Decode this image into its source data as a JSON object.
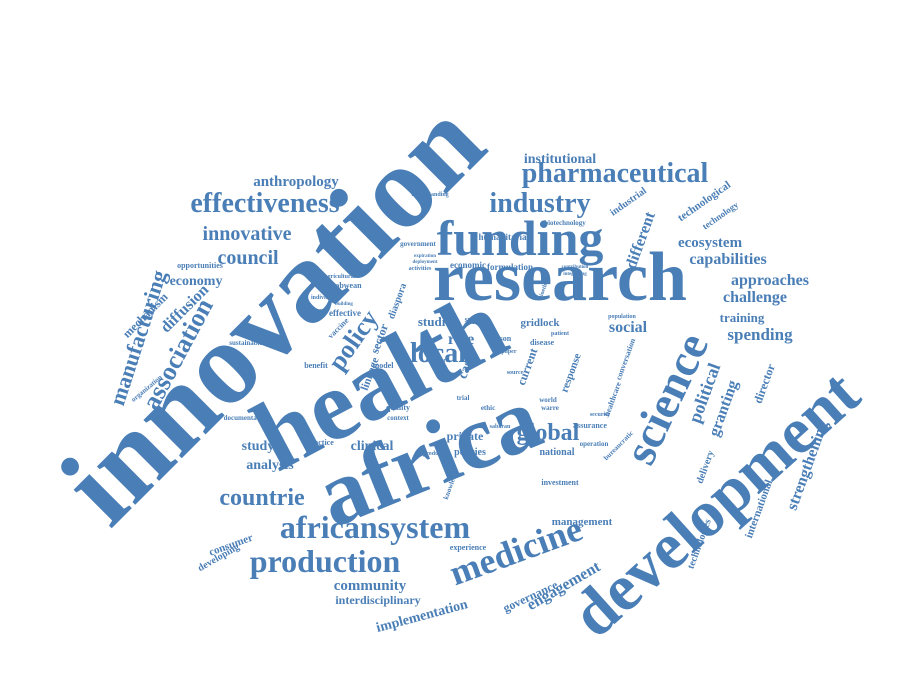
{
  "colors": {
    "word": "#4a7eb6",
    "background": "#ffffff"
  },
  "words": [
    "innovation",
    "health",
    "africa",
    "development",
    "research",
    "funding",
    "science",
    "pharmaceutical",
    "industry",
    "effectiveness",
    "innovative",
    "council",
    "manufacturing",
    "association",
    "medicine",
    "production",
    "africansystem",
    "countrie",
    "global",
    "local",
    "policy",
    "institutional",
    "anthropology",
    "economy",
    "diffusion",
    "mechanism",
    "political",
    "granting",
    "spending",
    "challenge",
    "approaches",
    "capabilities",
    "ecosystem",
    "different",
    "social",
    "studies",
    "gridlock",
    "strengthening",
    "international",
    "technologies",
    "engagement",
    "governance",
    "implementation",
    "interdisciplinary",
    "community",
    "analysis",
    "study",
    "clinical",
    "private",
    "policies",
    "national",
    "management",
    "consumer",
    "developing",
    "training",
    "director",
    "delivery",
    "technological",
    "technology",
    "industrial",
    "humanitarian",
    "biotechnology",
    "formulation",
    "economic",
    "government",
    "opportunities",
    "organization",
    "sustainable",
    "effective",
    "vaccine",
    "linkage",
    "sector",
    "role",
    "case",
    "model",
    "benefit",
    "quality",
    "context",
    "ethic",
    "trial",
    "assurance",
    "security",
    "healthcare",
    "conversation",
    "investment",
    "knowledge",
    "experience",
    "documentation",
    "practice",
    "understanding",
    "zimbabwean",
    "agricultural",
    "diaspora",
    "supply",
    "current",
    "response",
    "lesson",
    "disease",
    "paper",
    "patient",
    "bioethic",
    "contribution",
    "integrating",
    "expiration",
    "deployment",
    "activities",
    "more",
    "source",
    "world",
    "warre",
    "sabaran",
    "operation",
    "product",
    "bureaucratic",
    "population",
    "individual",
    "building"
  ]
}
